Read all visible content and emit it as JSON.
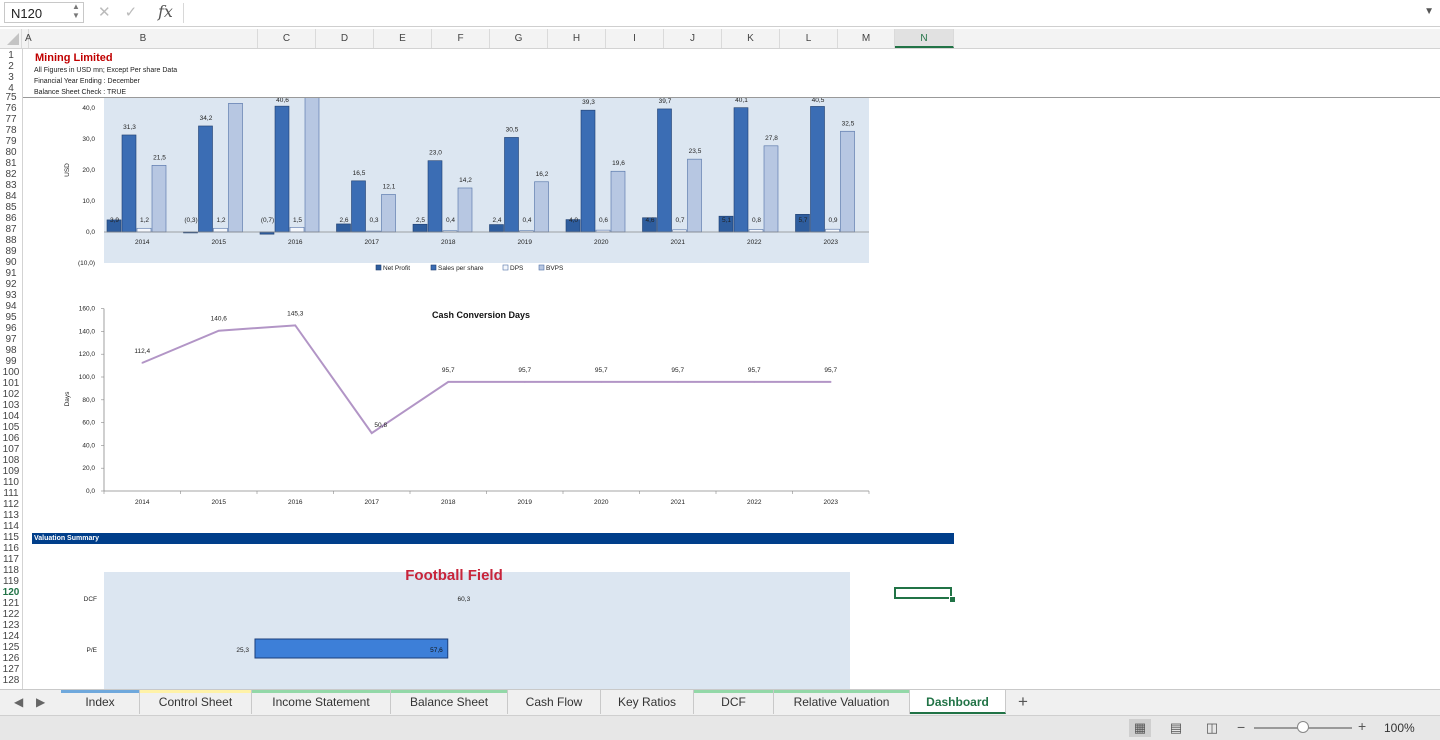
{
  "formula_bar": {
    "name_box": "N120",
    "fx": "fx",
    "formula": ""
  },
  "columns": [
    "A",
    "B",
    "C",
    "D",
    "E",
    "F",
    "G",
    "H",
    "I",
    "J",
    "K",
    "L",
    "M",
    "N"
  ],
  "selected_column": "N",
  "rows": [
    "1",
    "2",
    "3",
    "4",
    "75",
    "76",
    "77",
    "78",
    "79",
    "80",
    "81",
    "82",
    "83",
    "84",
    "85",
    "86",
    "87",
    "88",
    "89",
    "90",
    "91",
    "92",
    "93",
    "94",
    "95",
    "96",
    "97",
    "98",
    "99",
    "100",
    "101",
    "102",
    "103",
    "104",
    "105",
    "106",
    "107",
    "108",
    "109",
    "110",
    "111",
    "112",
    "113",
    "114",
    "115",
    "116",
    "117",
    "118",
    "119",
    "120",
    "121",
    "122",
    "123",
    "124",
    "125",
    "126",
    "127",
    "128"
  ],
  "selected_row": "120",
  "header": {
    "company": "Mining Limited",
    "line1": "All Figures in USD mn; Except Per share Data",
    "line2": "Financial Year Ending : December",
    "line3": "Balance Sheet Check : TRUE"
  },
  "colors": {
    "excel_green": "#217346",
    "navy": "#003e8a",
    "series1": "#2e5d9e",
    "series2": "#3b6db4",
    "series3": "#b7c7e2",
    "series4": "#a9bbda",
    "line": "#b295c6",
    "football_title": "#c8243a",
    "football_bg": "#dce6f1",
    "bar": "#3d7fd8"
  },
  "chart_data": [
    {
      "type": "bar",
      "categories": [
        "2014",
        "2015",
        "2016",
        "2017",
        "2018",
        "2019",
        "2020",
        "2021",
        "2022",
        "2023"
      ],
      "ylabel": "USD",
      "ylim": [
        -10,
        40
      ],
      "yticks": [
        "(10,0)",
        "0,0",
        "10,0",
        "20,0",
        "30,0",
        "40,0"
      ],
      "legend_position": "bottom",
      "series": [
        {
          "name": "Net Profit",
          "values": [
            3.9,
            -0.3,
            -0.7,
            2.6,
            2.5,
            2.4,
            4.0,
            4.6,
            5.1,
            5.7
          ],
          "labels": [
            "3,9",
            "(0,3)",
            "(0,7)",
            "2,6",
            "2,5",
            "2,4",
            "4,0",
            "4,6",
            "5,1",
            "5,7"
          ]
        },
        {
          "name": "Sales per share",
          "values": [
            31.3,
            34.2,
            40.6,
            16.5,
            23.0,
            30.5,
            39.3,
            39.7,
            40.1,
            40.5
          ],
          "labels": [
            "31,3",
            "34,2",
            "40,6",
            "16,5",
            "23,0",
            "30,5",
            "39,3",
            "39,7",
            "40,1",
            "40,5"
          ]
        },
        {
          "name": "DPS",
          "values": [
            1.2,
            1.2,
            1.5,
            0.3,
            0.4,
            0.4,
            0.6,
            0.7,
            0.8,
            0.9
          ],
          "labels": [
            "1,2",
            "1,2",
            "1,5",
            "0,3",
            "0,4",
            "0,4",
            "0,6",
            "0,7",
            "0,8",
            "0,9"
          ]
        },
        {
          "name": "BVPS",
          "values": [
            21.5,
            41.5,
            43.5,
            12.1,
            14.2,
            16.2,
            19.6,
            23.5,
            27.8,
            32.5
          ],
          "labels": [
            "21,5",
            "",
            "",
            "12,1",
            "14,2",
            "16,2",
            "19,6",
            "23,5",
            "27,8",
            "32,5"
          ]
        }
      ]
    },
    {
      "type": "line",
      "title": "Cash Conversion Days",
      "ylabel": "Days",
      "categories": [
        "2014",
        "2015",
        "2016",
        "2017",
        "2018",
        "2019",
        "2020",
        "2021",
        "2022",
        "2023"
      ],
      "ylim": [
        0,
        160
      ],
      "yticks": [
        "0,0",
        "20,0",
        "40,0",
        "60,0",
        "80,0",
        "100,0",
        "120,0",
        "140,0",
        "160,0"
      ],
      "series": [
        {
          "values": [
            112.4,
            140.6,
            145.3,
            50.8,
            95.7,
            95.7,
            95.7,
            95.7,
            95.7,
            95.7
          ],
          "labels": [
            "112,4",
            "140,6",
            "145,3",
            "50,8",
            "95,7",
            "95,7",
            "95,7",
            "95,7",
            "95,7",
            "95,7"
          ]
        }
      ]
    },
    {
      "type": "bar",
      "title": "Football Field",
      "categories": [
        "DCF",
        "P/E"
      ],
      "ranges": [
        {
          "label": "DCF",
          "low": 60.3,
          "high": 60.3,
          "low_label": "",
          "high_label": "60,3"
        },
        {
          "label": "P/E",
          "low": 25.3,
          "high": 57.6,
          "low_label": "25,3",
          "high_label": "57,6"
        }
      ],
      "xlim": [
        0,
        125
      ]
    }
  ],
  "valuation_header": "Valuation Summary",
  "sheet_tabs": [
    {
      "label": "Index",
      "color": "#6fa8dc"
    },
    {
      "label": "Control Sheet",
      "color": "#fff2a8"
    },
    {
      "label": "Income Statement",
      "color": "#93d8a8"
    },
    {
      "label": "Balance Sheet",
      "color": "#93d8a8"
    },
    {
      "label": "Cash Flow",
      "color": ""
    },
    {
      "label": "Key Ratios",
      "color": ""
    },
    {
      "label": "DCF",
      "color": "#93d8a8"
    },
    {
      "label": "Relative Valuation",
      "color": "#93d8a8"
    },
    {
      "label": "Dashboard",
      "color": ""
    }
  ],
  "active_tab": "Dashboard",
  "status": {
    "zoom": "100%"
  }
}
